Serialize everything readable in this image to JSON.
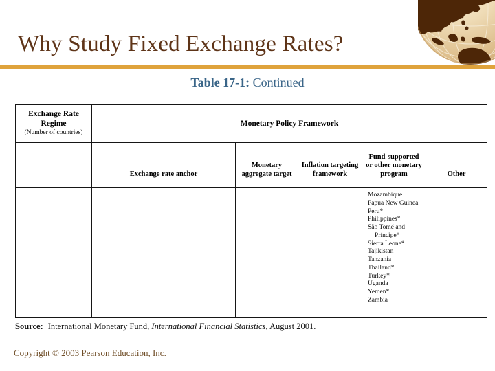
{
  "slide": {
    "title": "Why Study Fixed Exchange Rates?",
    "table_caption": {
      "prefix": "Table 17-1:",
      "suffix": " Continued"
    },
    "footer": {
      "copyright": "Copyright © 2003 Pearson Education, Inc."
    }
  },
  "table": {
    "regime_header": "Exchange Rate Regime",
    "regime_subheader": "(Number of countries)",
    "framework_header": "Monetary Policy Framework",
    "sub_columns": {
      "anchor": "Exchange rate anchor",
      "monetary_aggregate": "Monetary aggregate target",
      "inflation_targeting": "Inflation targeting framework",
      "fund_supported": "Fund-supported or other monetary program",
      "other": "Other"
    },
    "body": {
      "fund_supported_countries": [
        "Mozambique",
        "Papua New Guinea",
        "Peru*",
        "Philippines*",
        "São Tomé and Príncipe*",
        "Sierra Leone*",
        "Tajikistan",
        "Tanzania",
        "Thailand*",
        "Turkey*",
        "Uganda",
        "Yemen*",
        "Zambia"
      ]
    }
  },
  "source_note": {
    "label": "Source:",
    "pre_italic": "International Monetary Fund, ",
    "italic": "International Financial Statistics,",
    "post_italic": " August 2001."
  },
  "icons": {
    "globe": "globe-ornament"
  },
  "colors": {
    "title_brown": "#5E3418",
    "accent_gold": "#DFA33C",
    "caption_blue": "#3A6588",
    "copyright_brown": "#6F4D27",
    "globe_land": "#4D2607",
    "globe_ocean": "#EFDCB7"
  }
}
